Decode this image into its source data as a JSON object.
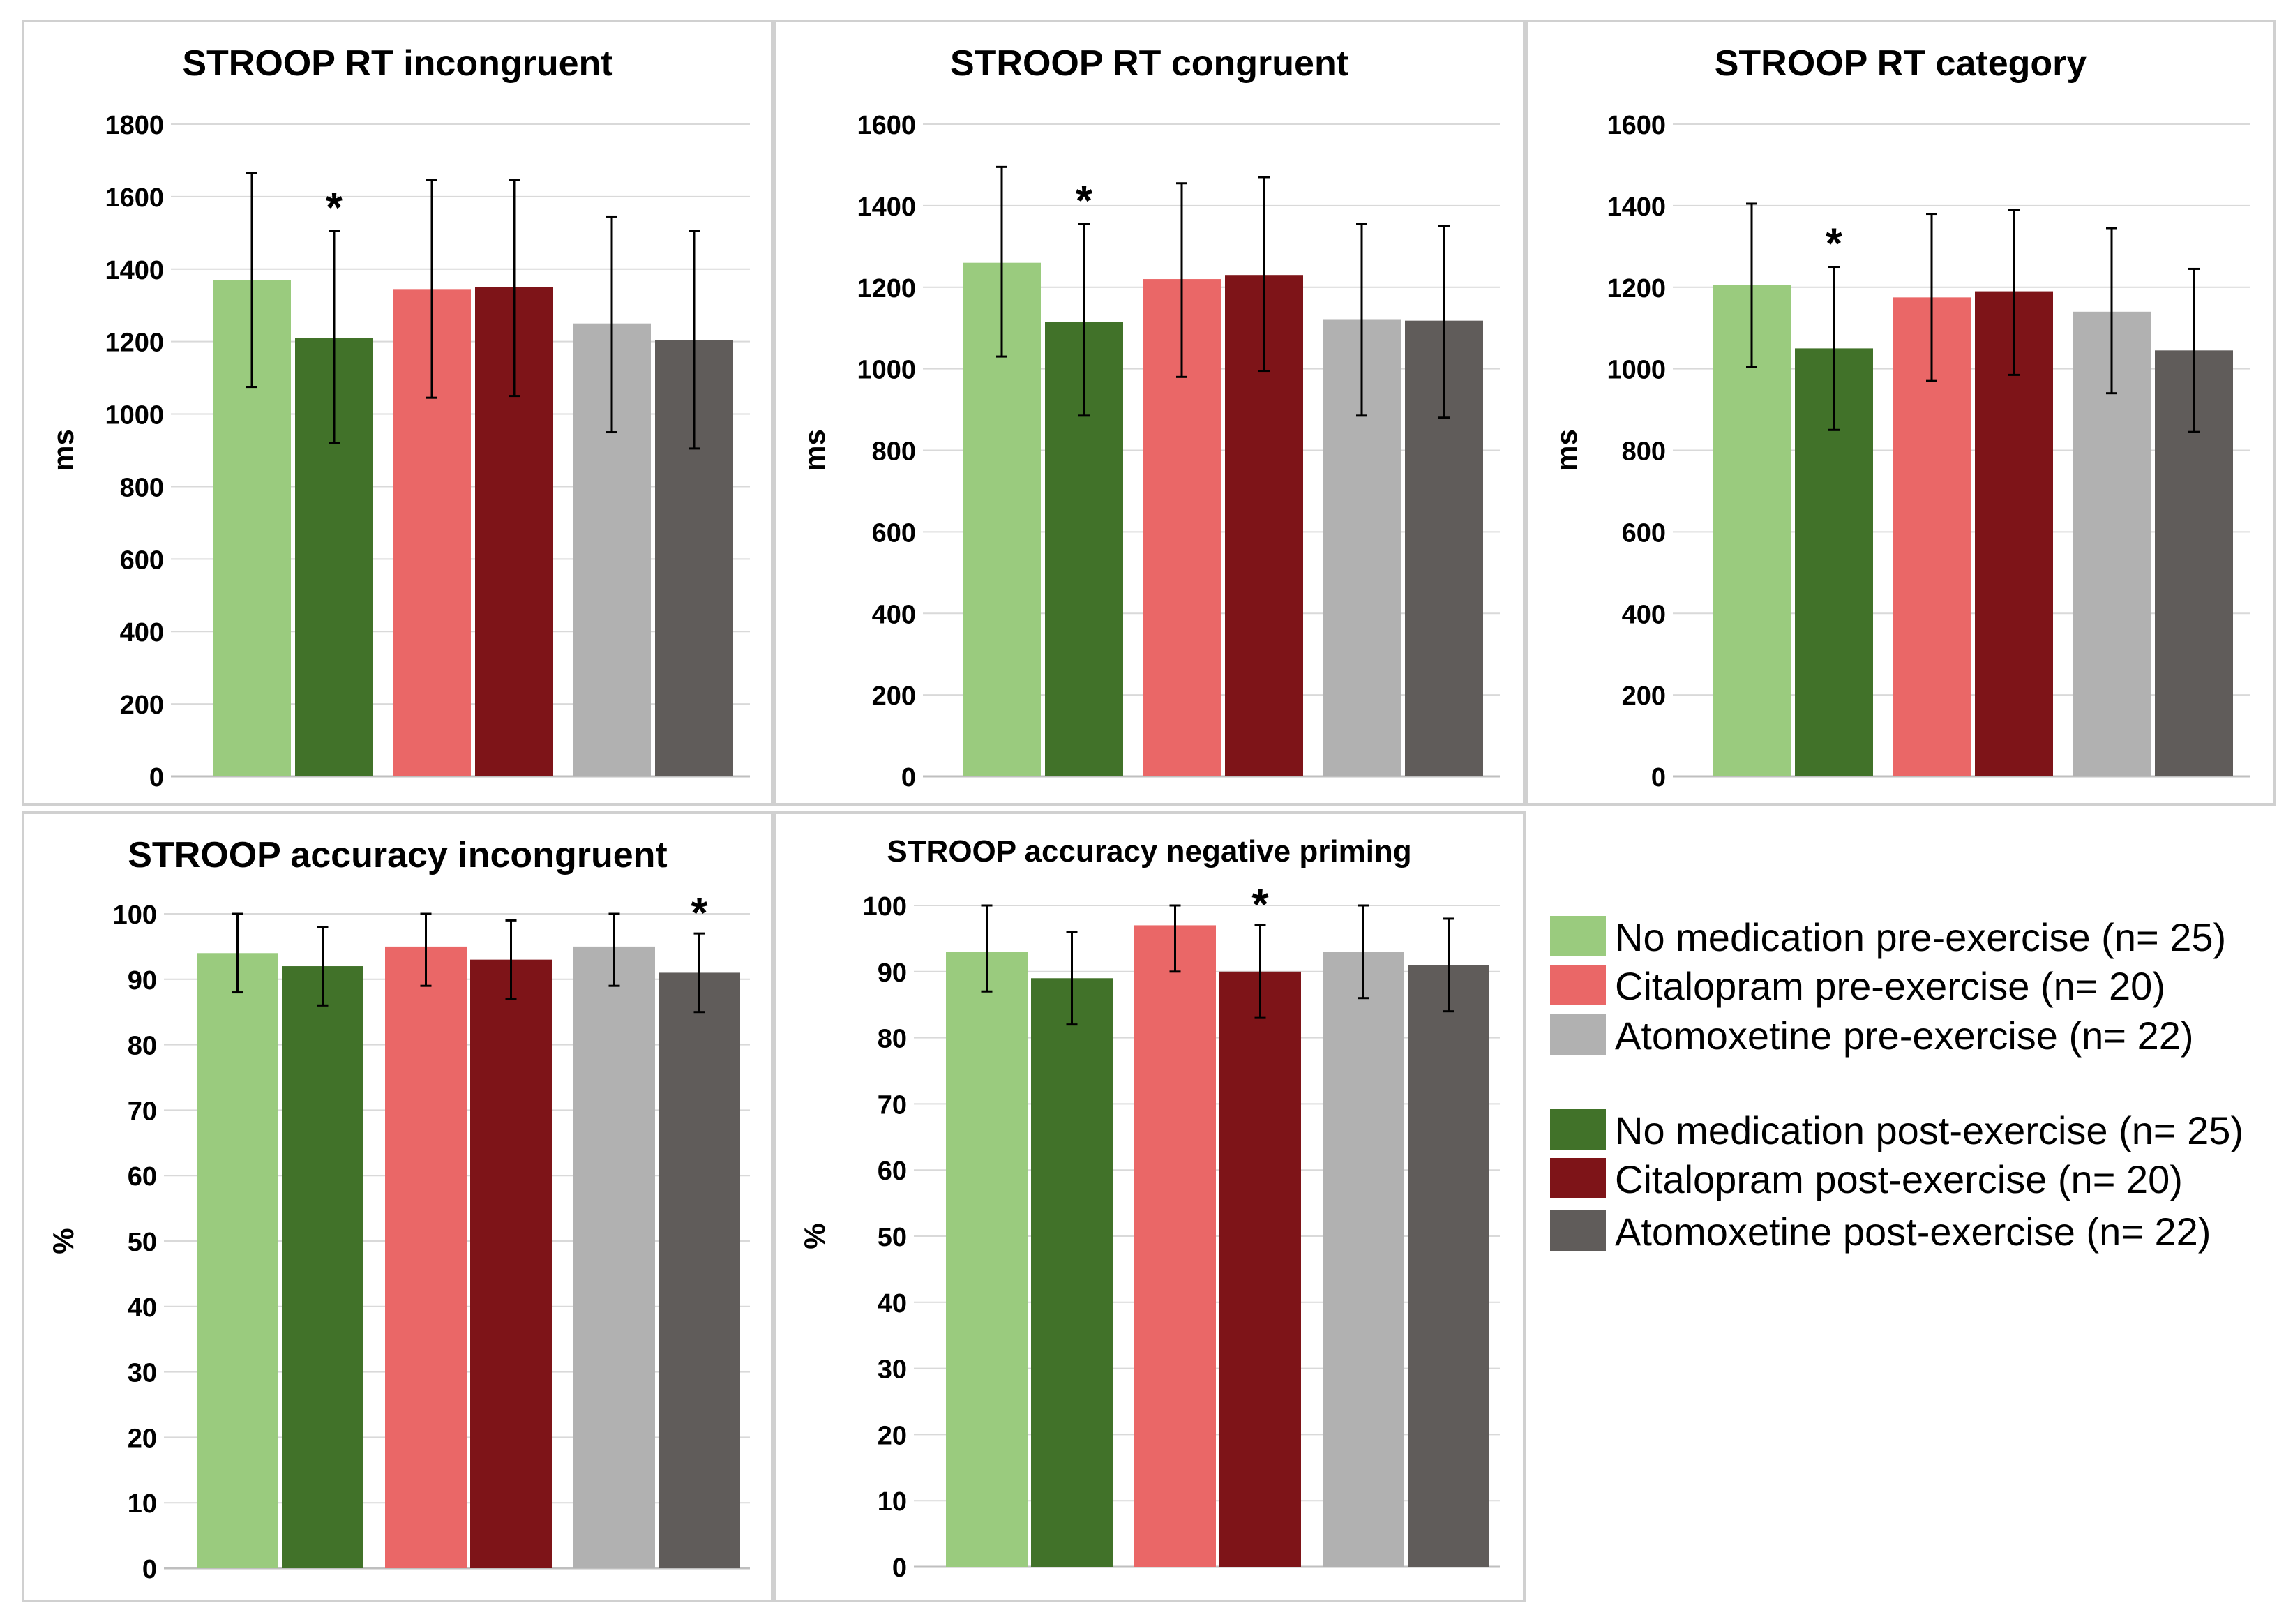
{
  "chart_data": [
    {
      "type": "bar",
      "title": "STROOP RT incongruent",
      "ylabel": "ms",
      "ylim": [
        0,
        1800
      ],
      "ticks": [
        0,
        200,
        400,
        600,
        800,
        1000,
        1200,
        1400,
        1600,
        1800
      ],
      "series": [
        {
          "name": "No medication pre-exercise (n= 25)",
          "value": 1370,
          "err_low": 1075,
          "err_high": 1665
        },
        {
          "name": "No medication post-exercise (n= 25)",
          "value": 1210,
          "err_low": 920,
          "err_high": 1505
        },
        {
          "name": "Citalopram pre-exercise (n= 20)",
          "value": 1345,
          "err_low": 1045,
          "err_high": 1645
        },
        {
          "name": "Citalopram post-exercise (n= 20)",
          "value": 1350,
          "err_low": 1050,
          "err_high": 1645
        },
        {
          "name": "Atomoxetine pre-exercise (n= 22)",
          "value": 1250,
          "err_low": 950,
          "err_high": 1545
        },
        {
          "name": "Atomoxetine post-exercise (n= 22)",
          "value": 1205,
          "err_low": 905,
          "err_high": 1505
        }
      ],
      "significance": [
        {
          "bar": 1,
          "label": "*"
        }
      ]
    },
    {
      "type": "bar",
      "title": "STROOP RT congruent",
      "ylabel": "ms",
      "ylim": [
        0,
        1600
      ],
      "ticks": [
        0,
        200,
        400,
        600,
        800,
        1000,
        1200,
        1400,
        1600
      ],
      "series": [
        {
          "name": "No medication pre-exercise (n= 25)",
          "value": 1260,
          "err_low": 1030,
          "err_high": 1495
        },
        {
          "name": "No medication post-exercise (n= 25)",
          "value": 1115,
          "err_low": 885,
          "err_high": 1355
        },
        {
          "name": "Citalopram pre-exercise (n= 20)",
          "value": 1220,
          "err_low": 980,
          "err_high": 1455
        },
        {
          "name": "Citalopram post-exercise (n= 20)",
          "value": 1230,
          "err_low": 995,
          "err_high": 1470
        },
        {
          "name": "Atomoxetine pre-exercise (n= 22)",
          "value": 1120,
          "err_low": 885,
          "err_high": 1355
        },
        {
          "name": "Atomoxetine post-exercise (n= 22)",
          "value": 1118,
          "err_low": 880,
          "err_high": 1350
        }
      ],
      "significance": [
        {
          "bar": 1,
          "label": "*"
        }
      ]
    },
    {
      "type": "bar",
      "title": "STROOP RT category",
      "ylabel": "ms",
      "ylim": [
        0,
        1600
      ],
      "ticks": [
        0,
        200,
        400,
        600,
        800,
        1000,
        1200,
        1400,
        1600
      ],
      "series": [
        {
          "name": "No medication pre-exercise (n= 25)",
          "value": 1205,
          "err_low": 1005,
          "err_high": 1405
        },
        {
          "name": "No medication post-exercise (n= 25)",
          "value": 1050,
          "err_low": 850,
          "err_high": 1250
        },
        {
          "name": "Citalopram pre-exercise (n= 20)",
          "value": 1175,
          "err_low": 970,
          "err_high": 1380
        },
        {
          "name": "Citalopram post-exercise (n= 20)",
          "value": 1190,
          "err_low": 985,
          "err_high": 1390
        },
        {
          "name": "Atomoxetine pre-exercise (n= 22)",
          "value": 1140,
          "err_low": 940,
          "err_high": 1345
        },
        {
          "name": "Atomoxetine post-exercise (n= 22)",
          "value": 1045,
          "err_low": 845,
          "err_high": 1245
        }
      ],
      "significance": [
        {
          "bar": 1,
          "label": "*"
        }
      ]
    },
    {
      "type": "bar",
      "title": "STROOP accuracy incongruent",
      "ylabel": "%",
      "ylim": [
        0,
        100
      ],
      "ticks": [
        0,
        10,
        20,
        30,
        40,
        50,
        60,
        70,
        80,
        90,
        100
      ],
      "series": [
        {
          "name": "No medication pre-exercise (n= 25)",
          "value": 94,
          "err_low": 88,
          "err_high": 100
        },
        {
          "name": "No medication post-exercise (n= 25)",
          "value": 92,
          "err_low": 86,
          "err_high": 98
        },
        {
          "name": "Citalopram pre-exercise (n= 20)",
          "value": 95,
          "err_low": 89,
          "err_high": 100
        },
        {
          "name": "Citalopram post-exercise (n= 20)",
          "value": 93,
          "err_low": 87,
          "err_high": 99
        },
        {
          "name": "Atomoxetine pre-exercise (n= 22)",
          "value": 95,
          "err_low": 89,
          "err_high": 100
        },
        {
          "name": "Atomoxetine post-exercise (n= 22)",
          "value": 91,
          "err_low": 85,
          "err_high": 97
        }
      ],
      "significance": [
        {
          "bar": 5,
          "label": "*"
        }
      ]
    },
    {
      "type": "bar",
      "title": "STROOP accuracy negative priming",
      "ylabel": "%",
      "ylim": [
        0,
        100
      ],
      "ticks": [
        0,
        10,
        20,
        30,
        40,
        50,
        60,
        70,
        80,
        90,
        100
      ],
      "series": [
        {
          "name": "No medication pre-exercise (n= 25)",
          "value": 93,
          "err_low": 87,
          "err_high": 100
        },
        {
          "name": "No medication post-exercise (n= 25)",
          "value": 89,
          "err_low": 82,
          "err_high": 96
        },
        {
          "name": "Citalopram pre-exercise (n= 20)",
          "value": 97,
          "err_low": 90,
          "err_high": 100
        },
        {
          "name": "Citalopram post-exercise (n= 20)",
          "value": 90,
          "err_low": 83,
          "err_high": 97
        },
        {
          "name": "Atomoxetine pre-exercise (n= 22)",
          "value": 93,
          "err_low": 86,
          "err_high": 100
        },
        {
          "name": "Atomoxetine post-exercise (n= 22)",
          "value": 91,
          "err_low": 84,
          "err_high": 98
        }
      ],
      "significance": [
        {
          "bar": 3,
          "label": "*"
        }
      ]
    }
  ],
  "colors": [
    "#9acb7e",
    "#417229",
    "#ea6767",
    "#7e1418",
    "#b1b1b1",
    "#605c5a"
  ],
  "legend": {
    "items": [
      {
        "label": "No medication pre-exercise (n= 25)",
        "color": "#9acb7e"
      },
      {
        "label": "Citalopram pre-exercise (n= 20)",
        "color": "#ea6767"
      },
      {
        "label": "Atomoxetine pre-exercise (n= 22)",
        "color": "#b1b1b1"
      },
      {
        "label": "No medication post-exercise (n= 25)",
        "color": "#417229"
      },
      {
        "label": "Citalopram post-exercise (n= 20)",
        "color": "#7e1418"
      },
      {
        "label": "Atomoxetine post-exercise (n= 22)",
        "color": "#605c5a"
      }
    ]
  }
}
